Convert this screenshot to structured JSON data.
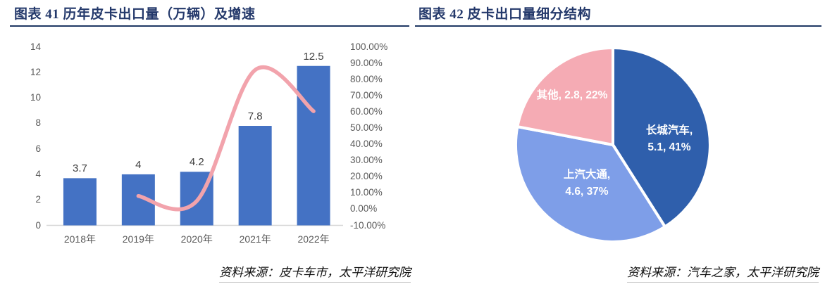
{
  "left_panel": {
    "title": "图表 41 历年皮卡出口量（万辆）及增速",
    "source": "资料来源：皮卡车市，太平洋研究院"
  },
  "right_panel": {
    "title": "图表 42 皮卡出口量细分结构",
    "source": "资料来源：汽车之家，太平洋研究院"
  },
  "colors": {
    "title_navy": "#24396b",
    "rule_navy": "#1f3864",
    "bar_blue": "#4472c4",
    "line_pink": "#f2a3ac",
    "pie_dark_blue": "#2f5fac",
    "pie_light_blue": "#7e9ee8",
    "pie_pink": "#f5abb4",
    "axis_text_gray": "#595959",
    "axis_line_gray": "#d6d6d6",
    "pie_border_white": "#ffffff"
  },
  "chart_data": [
    {
      "type": "bar",
      "title": "历年皮卡出口量（万辆）及增速",
      "categories": [
        "2018年",
        "2019年",
        "2020年",
        "2021年",
        "2022年"
      ],
      "series": [
        {
          "name": "出口量（万辆）",
          "type": "bar",
          "axis": "left",
          "values": [
            3.7,
            4,
            4.2,
            7.8,
            12.5
          ],
          "labels": [
            "3.7",
            "4",
            "4.2",
            "7.8",
            "12.5"
          ],
          "color": "#4472c4"
        },
        {
          "name": "增速",
          "type": "line",
          "axis": "right",
          "smoothed": true,
          "values": [
            null,
            8.1,
            5.0,
            85.7,
            60.3
          ],
          "unit": "%",
          "color": "#f2a3ac"
        }
      ],
      "left_axis": {
        "min": 0,
        "max": 14,
        "step": 2,
        "tick_values": [
          14,
          12,
          10,
          8,
          6,
          4,
          2,
          0
        ],
        "ticks": [
          "14",
          "12",
          "10",
          "8",
          "6",
          "4",
          "2",
          "0"
        ]
      },
      "right_axis": {
        "min": -10,
        "max": 100,
        "step": 10,
        "tick_values": [
          100,
          90,
          80,
          70,
          60,
          50,
          40,
          30,
          20,
          10,
          0,
          -10
        ],
        "ticks": [
          "100.00%",
          "90.00%",
          "80.00%",
          "70.00%",
          "60.00%",
          "50.00%",
          "40.00%",
          "30.00%",
          "20.00%",
          "10.00%",
          "0.00%",
          "-10.00%"
        ]
      },
      "grid": false,
      "legend": "none"
    },
    {
      "type": "pie",
      "title": "皮卡出口量细分结构",
      "start_angle_deg_from_top": 0,
      "direction": "clockwise",
      "slices": [
        {
          "name": "长城汽车",
          "value": 5.1,
          "pct": 41,
          "color": "#2f5fac",
          "label_lines": [
            "长城汽车,",
            "5.1, 41%"
          ]
        },
        {
          "name": "上汽大通",
          "value": 4.6,
          "pct": 37,
          "color": "#7e9ee8",
          "label_lines": [
            "上汽大通,",
            "4.6, 37%"
          ]
        },
        {
          "name": "其他",
          "value": 2.8,
          "pct": 22,
          "color": "#f5abb4",
          "label_lines": [
            "其他, 2.8, 22%"
          ]
        }
      ]
    }
  ]
}
